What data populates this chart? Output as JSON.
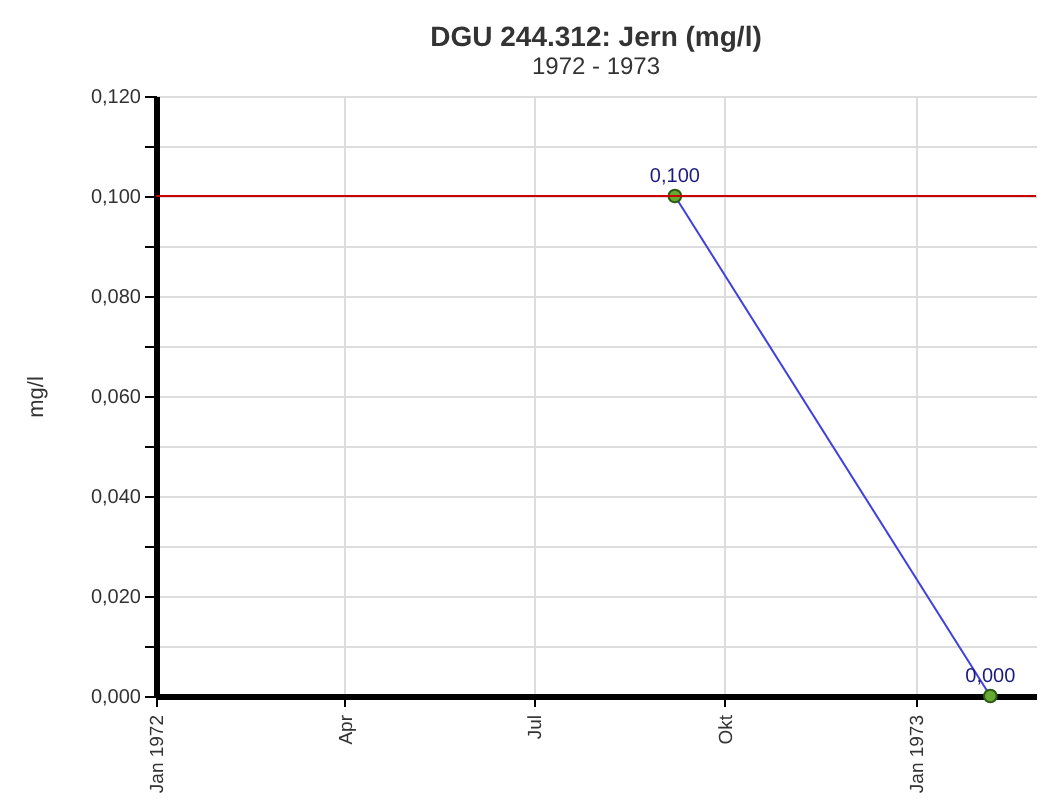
{
  "chart_data": {
    "type": "line",
    "title": "DGU 244.312: Jern (mg/l)",
    "subtitle": "1972 - 1973",
    "ylabel": "mg/l",
    "x": [
      "1972-09-07",
      "1973-02-06"
    ],
    "series": [
      {
        "color": "#3f3fdd",
        "values": [
          0.1,
          0.0
        ],
        "value_labels": [
          "0,100",
          "0,000"
        ]
      }
    ],
    "xlim": [
      "1972-01-01",
      "1973-02-28"
    ],
    "xticks": [
      {
        "value": "1972-01-01",
        "label": "Jan 1972"
      },
      {
        "value": "1972-04-01",
        "label": "Apr"
      },
      {
        "value": "1972-07-01",
        "label": "Jul"
      },
      {
        "value": "1972-10-01",
        "label": "Okt"
      },
      {
        "value": "1973-01-01",
        "label": "Jan 1973"
      }
    ],
    "ylim": [
      0,
      0.12
    ],
    "yticks": [
      {
        "value": 0,
        "label": "0,000"
      },
      {
        "value": 0.01,
        "label": null
      },
      {
        "value": 0.02,
        "label": "0,020"
      },
      {
        "value": 0.03,
        "label": null
      },
      {
        "value": 0.04,
        "label": "0,040"
      },
      {
        "value": 0.05,
        "label": null
      },
      {
        "value": 0.06,
        "label": "0,060"
      },
      {
        "value": 0.07,
        "label": null
      },
      {
        "value": 0.08,
        "label": "0,080"
      },
      {
        "value": 0.09,
        "label": null
      },
      {
        "value": 0.1,
        "label": "0,100"
      },
      {
        "value": 0.11,
        "label": null
      },
      {
        "value": 0.12,
        "label": "0,120"
      }
    ],
    "ref_lines": [
      {
        "axis": "y",
        "value": 0.1,
        "color": "#cc0000"
      }
    ],
    "grid": true,
    "marker": "circle"
  }
}
